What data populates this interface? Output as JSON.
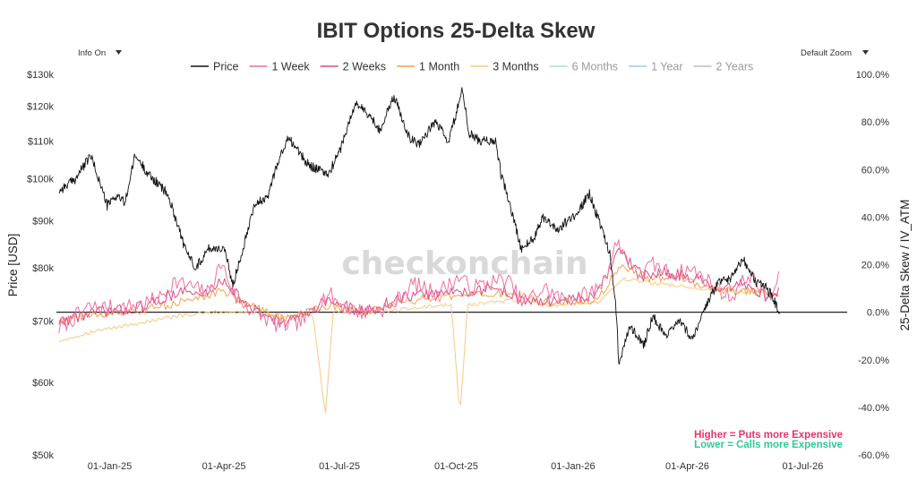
{
  "chart_data": {
    "type": "line",
    "title": "IBIT Options 25-Delta Skew",
    "controls": {
      "info_label": "Info On",
      "zoom_label": "Default Zoom"
    },
    "watermark": "checkonchain",
    "y_left": {
      "label": "Price [USD]",
      "scale": "log",
      "range": [
        50000,
        130000
      ],
      "ticks": [
        {
          "value": 50000,
          "label": "$50k"
        },
        {
          "value": 60000,
          "label": "$60k"
        },
        {
          "value": 70000,
          "label": "$70k"
        },
        {
          "value": 80000,
          "label": "$80k"
        },
        {
          "value": 90000,
          "label": "$90k"
        },
        {
          "value": 100000,
          "label": "$100k"
        },
        {
          "value": 110000,
          "label": "$110k"
        },
        {
          "value": 120000,
          "label": "$120k"
        },
        {
          "value": 130000,
          "label": "$130k"
        }
      ]
    },
    "y_right": {
      "label": "25-Delta Skew / IV_ATM",
      "range": [
        -0.6,
        1.0
      ],
      "ticks": [
        {
          "value": 1.0,
          "label": "100.0%"
        },
        {
          "value": 0.8,
          "label": "80.0%"
        },
        {
          "value": 0.6,
          "label": "60.0%"
        },
        {
          "value": 0.4,
          "label": "40.0%"
        },
        {
          "value": 0.2,
          "label": "20.0%"
        },
        {
          "value": 0.0,
          "label": "0.0%"
        },
        {
          "value": -0.2,
          "label": "-20.0%"
        },
        {
          "value": -0.4,
          "label": "-40.0%"
        },
        {
          "value": -0.6,
          "label": "-60.0%"
        }
      ]
    },
    "x_axis": {
      "range": [
        "2024-11-20",
        "2026-08-05"
      ],
      "ticks": [
        {
          "value": "2025-01-01",
          "label": "01-Jan-25"
        },
        {
          "value": "2025-04-01",
          "label": "01-Apr-25"
        },
        {
          "value": "2025-07-01",
          "label": "01-Jul-25"
        },
        {
          "value": "2025-10-01",
          "label": "01-Oct-25"
        },
        {
          "value": "2026-01-01",
          "label": "01-Jan-26"
        },
        {
          "value": "2026-04-01",
          "label": "01-Apr-26"
        },
        {
          "value": "2026-07-01",
          "label": "01-Jul-26"
        }
      ]
    },
    "zero_line": 0.0,
    "legend_position": "top-center",
    "annotations": [
      {
        "text": "Higher = Puts more Expensive",
        "color": "#e8336b"
      },
      {
        "text": "Lower = Calls more Expensive",
        "color": "#2ec99a"
      }
    ],
    "price_series": {
      "name": "Price",
      "color": "#111111",
      "axis": "left",
      "points": [
        [
          "2024-11-22",
          97000
        ],
        [
          "2024-12-05",
          100000
        ],
        [
          "2024-12-17",
          106000
        ],
        [
          "2024-12-30",
          93500
        ],
        [
          "2025-01-07",
          96000
        ],
        [
          "2025-01-13",
          94000
        ],
        [
          "2025-01-21",
          106000
        ],
        [
          "2025-02-01",
          101000
        ],
        [
          "2025-02-15",
          96500
        ],
        [
          "2025-02-25",
          88000
        ],
        [
          "2025-03-01",
          84000
        ],
        [
          "2025-03-10",
          80000
        ],
        [
          "2025-03-20",
          84000
        ],
        [
          "2025-04-01",
          84000
        ],
        [
          "2025-04-08",
          76500
        ],
        [
          "2025-04-16",
          84000
        ],
        [
          "2025-04-25",
          94000
        ],
        [
          "2025-05-05",
          95000
        ],
        [
          "2025-05-12",
          103000
        ],
        [
          "2025-05-22",
          111000
        ],
        [
          "2025-06-05",
          104000
        ],
        [
          "2025-06-22",
          101000
        ],
        [
          "2025-07-01",
          107000
        ],
        [
          "2025-07-14",
          121000
        ],
        [
          "2025-07-25",
          117000
        ],
        [
          "2025-08-02",
          113000
        ],
        [
          "2025-08-13",
          123000
        ],
        [
          "2025-08-25",
          111000
        ],
        [
          "2025-09-01",
          109000
        ],
        [
          "2025-09-15",
          115500
        ],
        [
          "2025-09-25",
          109500
        ],
        [
          "2025-10-06",
          125000
        ],
        [
          "2025-10-11",
          112000
        ],
        [
          "2025-10-20",
          110000
        ],
        [
          "2025-11-01",
          110000
        ],
        [
          "2025-11-05",
          101500
        ],
        [
          "2025-11-21",
          84000
        ],
        [
          "2025-12-01",
          86000
        ],
        [
          "2025-12-08",
          91000
        ],
        [
          "2025-12-20",
          88000
        ],
        [
          "2026-01-05",
          92000
        ],
        [
          "2026-01-14",
          96500
        ],
        [
          "2026-01-20",
          91000
        ],
        [
          "2026-01-30",
          83000
        ],
        [
          "2026-02-04",
          72000
        ],
        [
          "2026-02-06",
          63000
        ],
        [
          "2026-02-15",
          69000
        ],
        [
          "2026-02-26",
          66000
        ],
        [
          "2026-03-05",
          71000
        ],
        [
          "2026-03-15",
          67000
        ],
        [
          "2026-03-25",
          70000
        ],
        [
          "2026-04-05",
          67000
        ],
        [
          "2026-04-15",
          72000
        ],
        [
          "2026-04-25",
          77000
        ],
        [
          "2026-05-05",
          78000
        ],
        [
          "2026-05-15",
          82000
        ],
        [
          "2026-05-25",
          77000
        ],
        [
          "2026-06-01",
          76500
        ],
        [
          "2026-06-08",
          74000
        ],
        [
          "2026-06-13",
          71000
        ]
      ]
    },
    "series": [
      {
        "name": "1 Week",
        "color": "#ec6fa0",
        "axis": "right",
        "visible": true,
        "points": [
          [
            "2024-11-22",
            -0.07
          ],
          [
            "2024-12-15",
            0.02
          ],
          [
            "2025-01-10",
            0.02
          ],
          [
            "2025-01-25",
            0.03
          ],
          [
            "2025-02-10",
            0.06
          ],
          [
            "2025-02-20",
            0.13
          ],
          [
            "2025-03-05",
            0.11
          ],
          [
            "2025-03-20",
            0.08
          ],
          [
            "2025-03-30",
            0.21
          ],
          [
            "2025-04-10",
            0.06
          ],
          [
            "2025-04-25",
            0.0
          ],
          [
            "2025-05-15",
            -0.06
          ],
          [
            "2025-06-01",
            -0.04
          ],
          [
            "2025-06-22",
            0.08
          ],
          [
            "2025-07-05",
            0.02
          ],
          [
            "2025-07-20",
            0.0
          ],
          [
            "2025-08-10",
            0.02
          ],
          [
            "2025-08-28",
            0.12
          ],
          [
            "2025-09-15",
            0.08
          ],
          [
            "2025-10-05",
            0.15
          ],
          [
            "2025-10-11",
            0.1
          ],
          [
            "2025-10-25",
            0.12
          ],
          [
            "2025-11-10",
            0.14
          ],
          [
            "2025-11-22",
            0.04
          ],
          [
            "2025-12-10",
            0.1
          ],
          [
            "2025-12-25",
            0.05
          ],
          [
            "2026-01-15",
            0.08
          ],
          [
            "2026-01-25",
            0.13
          ],
          [
            "2026-02-05",
            0.3
          ],
          [
            "2026-02-20",
            0.15
          ],
          [
            "2026-03-05",
            0.2
          ],
          [
            "2026-03-20",
            0.16
          ],
          [
            "2026-04-05",
            0.18
          ],
          [
            "2026-04-20",
            0.12
          ],
          [
            "2026-05-05",
            0.06
          ],
          [
            "2026-05-20",
            0.16
          ],
          [
            "2026-06-05",
            0.05
          ],
          [
            "2026-06-13",
            0.15
          ]
        ]
      },
      {
        "name": "2 Weeks",
        "color": "#d94f86",
        "axis": "right",
        "visible": true,
        "points": [
          [
            "2024-11-22",
            -0.04
          ],
          [
            "2024-12-20",
            0.0
          ],
          [
            "2025-01-15",
            0.01
          ],
          [
            "2025-02-05",
            0.04
          ],
          [
            "2025-02-25",
            0.09
          ],
          [
            "2025-03-15",
            0.07
          ],
          [
            "2025-04-01",
            0.14
          ],
          [
            "2025-04-20",
            0.02
          ],
          [
            "2025-05-20",
            -0.05
          ],
          [
            "2025-06-20",
            0.05
          ],
          [
            "2025-07-20",
            0.0
          ],
          [
            "2025-08-25",
            0.07
          ],
          [
            "2025-09-20",
            0.08
          ],
          [
            "2025-10-10",
            0.09
          ],
          [
            "2025-11-05",
            0.1
          ],
          [
            "2025-11-25",
            0.04
          ],
          [
            "2025-12-20",
            0.05
          ],
          [
            "2026-01-20",
            0.07
          ],
          [
            "2026-02-06",
            0.26
          ],
          [
            "2026-02-25",
            0.15
          ],
          [
            "2026-03-15",
            0.17
          ],
          [
            "2026-04-10",
            0.14
          ],
          [
            "2026-04-25",
            0.08
          ],
          [
            "2026-05-15",
            0.12
          ],
          [
            "2026-06-05",
            0.06
          ],
          [
            "2026-06-13",
            0.1
          ]
        ]
      },
      {
        "name": "1 Month",
        "color": "#f5a24b",
        "axis": "right",
        "visible": true,
        "points": [
          [
            "2024-11-22",
            -0.03
          ],
          [
            "2024-12-20",
            -0.01
          ],
          [
            "2025-01-20",
            0.0
          ],
          [
            "2025-02-15",
            0.03
          ],
          [
            "2025-03-10",
            0.06
          ],
          [
            "2025-04-01",
            0.09
          ],
          [
            "2025-04-25",
            0.02
          ],
          [
            "2025-05-20",
            -0.03
          ],
          [
            "2025-06-20",
            0.03
          ],
          [
            "2025-07-20",
            0.0
          ],
          [
            "2025-08-25",
            0.05
          ],
          [
            "2025-09-25",
            0.06
          ],
          [
            "2025-10-15",
            0.07
          ],
          [
            "2025-11-10",
            0.08
          ],
          [
            "2025-12-10",
            0.04
          ],
          [
            "2026-01-20",
            0.05
          ],
          [
            "2026-02-08",
            0.2
          ],
          [
            "2026-03-01",
            0.14
          ],
          [
            "2026-03-25",
            0.15
          ],
          [
            "2026-04-20",
            0.1
          ],
          [
            "2026-05-10",
            0.09
          ],
          [
            "2026-06-05",
            0.08
          ],
          [
            "2026-06-13",
            0.07
          ]
        ]
      },
      {
        "name": "3 Months",
        "color": "#f6c983",
        "axis": "right",
        "visible": true,
        "points": [
          [
            "2024-11-22",
            -0.12
          ],
          [
            "2024-12-20",
            -0.08
          ],
          [
            "2025-01-20",
            -0.05
          ],
          [
            "2025-02-20",
            -0.02
          ],
          [
            "2025-03-25",
            0.0
          ],
          [
            "2025-04-25",
            0.0
          ],
          [
            "2025-05-25",
            -0.02
          ],
          [
            "2025-06-10",
            -0.01
          ],
          [
            "2025-06-20",
            -0.43
          ],
          [
            "2025-06-26",
            0.0
          ],
          [
            "2025-08-01",
            0.0
          ],
          [
            "2025-09-01",
            0.02
          ],
          [
            "2025-09-27",
            0.03
          ],
          [
            "2025-10-04",
            -0.43
          ],
          [
            "2025-10-10",
            0.03
          ],
          [
            "2025-11-15",
            0.05
          ],
          [
            "2025-12-15",
            0.03
          ],
          [
            "2026-01-20",
            0.04
          ],
          [
            "2026-02-10",
            0.14
          ],
          [
            "2026-03-10",
            0.12
          ],
          [
            "2026-04-10",
            0.1
          ],
          [
            "2026-05-10",
            0.09
          ],
          [
            "2026-06-13",
            0.08
          ]
        ]
      },
      {
        "name": "6 Months",
        "color": "#a9e4db",
        "axis": "right",
        "visible": false,
        "points": []
      },
      {
        "name": "1 Year",
        "color": "#a8c4ea",
        "axis": "right",
        "visible": false,
        "points": []
      },
      {
        "name": "2 Years",
        "color": "#b8bcd8",
        "axis": "right",
        "visible": false,
        "points": []
      }
    ]
  }
}
